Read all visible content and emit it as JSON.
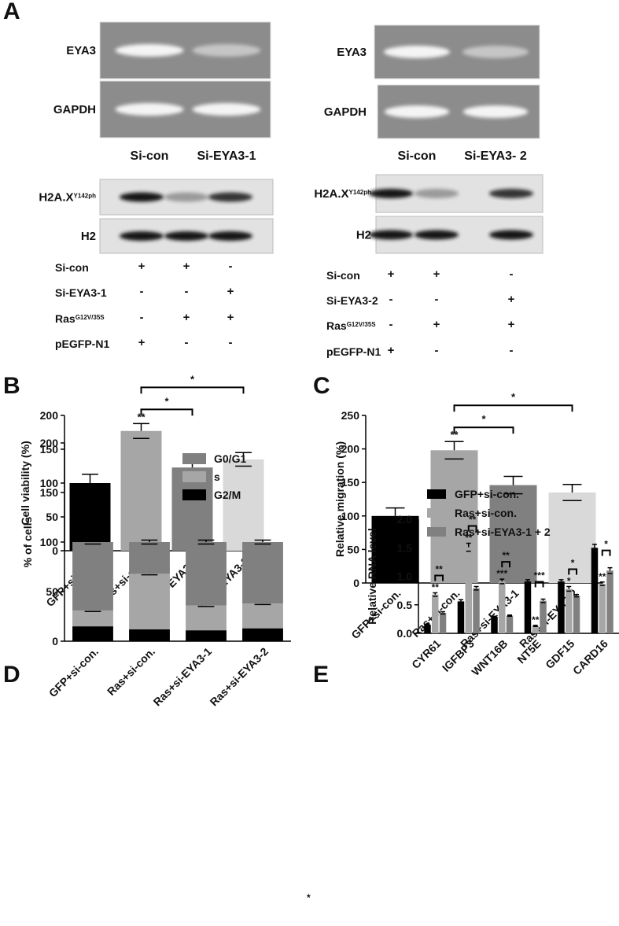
{
  "figure_a": {
    "label": "A",
    "left": {
      "gel_rows": [
        "EYA3",
        "GAPDH"
      ],
      "gel_lanes": [
        "Si-con",
        "Si-EYA3-1"
      ],
      "blot_rows": [
        {
          "name": "H2A.X",
          "sup": "Y142ph"
        },
        {
          "name": "H2"
        }
      ],
      "conditions": [
        {
          "name": "Si-con",
          "marks": [
            "+",
            "+",
            "-"
          ]
        },
        {
          "name": "Si-EYA3-1",
          "marks": [
            "-",
            "-",
            "+"
          ]
        },
        {
          "name": "Ras",
          "sup": "G12V/35S",
          "marks": [
            "-",
            "+",
            "+"
          ]
        },
        {
          "name": "pEGFP-N1",
          "marks": [
            "+",
            "-",
            "-"
          ]
        }
      ]
    },
    "right": {
      "gel_rows": [
        "EYA3",
        "GAPDH"
      ],
      "gel_lanes": [
        "Si-con",
        "Si-EYA3- 2"
      ],
      "blot_rows": [
        {
          "name": "H2A.X",
          "sup": "Y142ph"
        },
        {
          "name": "H2"
        }
      ],
      "conditions": [
        {
          "name": "Si-con",
          "marks": [
            "+",
            "+",
            "-"
          ]
        },
        {
          "name": "Si-EYA3-2",
          "marks": [
            "-",
            "-",
            "+"
          ]
        },
        {
          "name": "Ras",
          "sup": "G12V/35S",
          "marks": [
            "-",
            "+",
            "+"
          ]
        },
        {
          "name": "pEGFP-N1",
          "marks": [
            "+",
            "-",
            "-"
          ]
        }
      ]
    }
  },
  "chart_data": [
    {
      "type": "bar",
      "label": "B",
      "ylabel": "Cell viability (%)",
      "categories": [
        "GFP+si-con.",
        "Ras+si-con.",
        "Ras+si-EYA3-1",
        "Ras+si-EYA3-2"
      ],
      "values": [
        100,
        177,
        123,
        135
      ],
      "errors": [
        13,
        11,
        8,
        10
      ],
      "colors": [
        "#000000",
        "#a6a6a6",
        "#808080",
        "#d9d9d9"
      ],
      "ylim": [
        0,
        200
      ],
      "yticks": [
        0,
        50,
        100,
        150,
        200
      ],
      "significance": {
        "above": [
          {
            "category": "Ras+si-con.",
            "text": "**"
          }
        ],
        "brackets": [
          {
            "from": "Ras+si-con.",
            "to": "Ras+si-EYA3-1",
            "text": "*"
          },
          {
            "from": "Ras+si-con.",
            "to": "Ras+si-EYA3-2",
            "text": "*"
          }
        ]
      }
    },
    {
      "type": "bar",
      "label": "C",
      "ylabel": "Relative migration (%)",
      "categories": [
        "GFP+si-con.",
        "Ras+si-con.",
        "Ras+si-EYA3-1",
        "Ras+si-EYA3-2"
      ],
      "values": [
        100,
        198,
        146,
        135
      ],
      "errors": [
        12,
        13,
        13,
        12
      ],
      "colors": [
        "#000000",
        "#a6a6a6",
        "#808080",
        "#d9d9d9"
      ],
      "ylim": [
        0,
        250
      ],
      "yticks": [
        0,
        50,
        100,
        150,
        200,
        250
      ],
      "significance": {
        "above": [
          {
            "category": "Ras+si-con.",
            "text": "**"
          }
        ],
        "brackets": [
          {
            "from": "Ras+si-con.",
            "to": "Ras+si-EYA3-1",
            "text": "*"
          },
          {
            "from": "Ras+si-con.",
            "to": "Ras+si-EYA3-2",
            "text": "*"
          }
        ]
      }
    },
    {
      "type": "stacked_bar",
      "label": "D",
      "ylabel": "% of cells",
      "categories": [
        "GFP+si-con.",
        "Ras+si-con.",
        "Ras+si-EYA3-1",
        "Ras+si-EYA3-2"
      ],
      "series": [
        {
          "name": "G2/M",
          "color": "#000000",
          "values": [
            15,
            12,
            11,
            13
          ]
        },
        {
          "name": "s",
          "color": "#a6a6a6",
          "values": [
            16,
            56,
            25,
            25
          ],
          "errors": [
            1,
            1,
            1,
            1
          ]
        },
        {
          "name": "G0/G1",
          "color": "#808080",
          "values": [
            69,
            32,
            64,
            62
          ],
          "errors": [
            2,
            2,
            2,
            2
          ]
        }
      ],
      "ylim": [
        0,
        200
      ],
      "yticks": [
        0,
        50,
        100,
        150,
        200
      ]
    },
    {
      "type": "grouped_bar",
      "label": "E",
      "ylabel": "Relative RNA level",
      "categories": [
        "CYR61",
        "IGFBP3",
        "WNT16B",
        "NT5E",
        "GDF15",
        "CARD16"
      ],
      "series": [
        {
          "name": "GFP+si-con.",
          "color": "#000000",
          "values": [
            0.15,
            0.56,
            0.29,
            0.91,
            0.91,
            1.5
          ],
          "errors": [
            0.01,
            0.03,
            0.01,
            0.03,
            0.03,
            0.06
          ]
        },
        {
          "name": "Ras+si-con.",
          "color": "#a6a6a6",
          "values": [
            0.68,
            1.51,
            0.91,
            0.13,
            0.78,
            0.87
          ],
          "errors": [
            0.03,
            0.07,
            0.04,
            0.01,
            0.04,
            0.03
          ]
        },
        {
          "name": "Ras+si-EYA3-1 + 2",
          "color": "#808080",
          "values": [
            0.36,
            0.79,
            0.31,
            0.57,
            0.66,
            1.1
          ],
          "errors": [
            0.02,
            0.03,
            0.01,
            0.03,
            0.02,
            0.05
          ]
        }
      ],
      "ylim": [
        0,
        2
      ],
      "yticks": [
        {
          "value": 0,
          "label": "0.0"
        },
        0.5,
        {
          "value": 1,
          "label": "1.0"
        },
        1.5,
        {
          "value": 2,
          "label": "2.0"
        }
      ],
      "significance": {
        "above_series": "Ras+si-con.",
        "above": [
          "**",
          "**",
          "***",
          "**",
          "*",
          "**"
        ],
        "bracket_from": "Ras+si-con.",
        "bracket_to": "Ras+si-EYA3-1 + 2",
        "brackets": [
          "**",
          "**",
          "**",
          "***",
          "*",
          "*"
        ]
      }
    }
  ],
  "footnote_mark": "*"
}
